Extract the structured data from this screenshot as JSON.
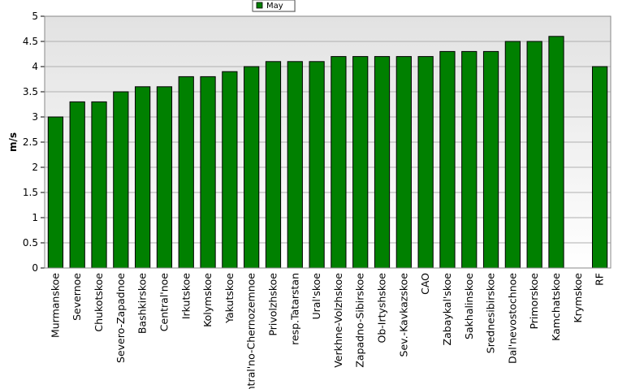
{
  "chart_data": {
    "type": "bar",
    "title": "",
    "xlabel": "",
    "ylabel": "m/s",
    "ylim": [
      0,
      5
    ],
    "yticks": [
      0,
      0.5,
      1,
      1.5,
      2,
      2.5,
      3,
      3.5,
      4,
      4.5,
      5
    ],
    "grid": true,
    "legend": "top-center",
    "bar_color": "#008000",
    "categories": [
      "Murmanskoe",
      "Severnoe",
      "Chukotskoe",
      "Severo-Zapadnoe",
      "Bashkirskoe",
      "Central'noe",
      "Irkutskoe",
      "Kolymskoe",
      "Yakutskoe",
      "Central'no-Chernozemnoe",
      "Privolzhskoe",
      "resp.Tatarstan",
      "Ural'skoe",
      "Verkhne-Volzhskoe",
      "Zapadno-Sibirskoe",
      "Ob-Irtyshskoe",
      "Sev.-Kavkazskoe",
      "CAO",
      "Zabaykal'skoe",
      "Sakhalinskoe",
      "Srednesibirskoe",
      "Dal'nevostochnoe",
      "Primorskoe",
      "Kamchatskoe",
      "Krymskoe",
      "RF"
    ],
    "series": [
      {
        "name": "May",
        "values": [
          3.0,
          3.3,
          3.3,
          3.5,
          3.6,
          3.6,
          3.8,
          3.8,
          3.9,
          4.0,
          4.1,
          4.1,
          4.1,
          4.2,
          4.2,
          4.2,
          4.2,
          4.2,
          4.3,
          4.3,
          4.3,
          4.5,
          4.5,
          4.6,
          null,
          4.0
        ]
      }
    ]
  }
}
